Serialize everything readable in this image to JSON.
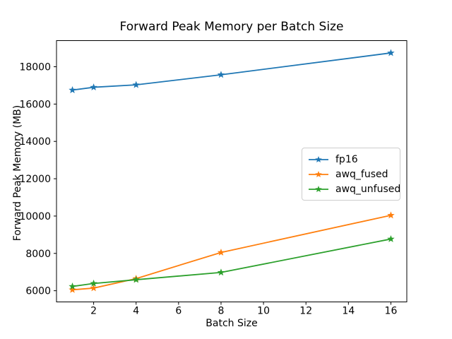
{
  "chart_data": {
    "type": "line",
    "title": "Forward Peak Memory per Batch Size",
    "xlabel": "Batch Size",
    "ylabel": "Forward Peak Memory (MB)",
    "x": [
      1,
      2,
      4,
      8,
      16
    ],
    "series": [
      {
        "name": "fp16",
        "color": "#1f77b4",
        "marker": "star",
        "values": [
          16750,
          16900,
          17030,
          17570,
          18740
        ]
      },
      {
        "name": "awq_fused",
        "color": "#ff7f0e",
        "marker": "star",
        "values": [
          6050,
          6140,
          6650,
          8050,
          10040
        ]
      },
      {
        "name": "awq_unfused",
        "color": "#2ca02c",
        "marker": "star",
        "values": [
          6230,
          6390,
          6590,
          6980,
          8770
        ]
      }
    ],
    "xticks": [
      2,
      4,
      6,
      8,
      10,
      12,
      14,
      16
    ],
    "yticks": [
      6000,
      8000,
      10000,
      12000,
      14000,
      16000,
      18000
    ],
    "xlim": [
      0.25,
      16.75
    ],
    "ylim": [
      5400,
      19400
    ],
    "grid": false,
    "legend_position": "center right",
    "axis_color": "#000000",
    "background_color": "#ffffff"
  }
}
